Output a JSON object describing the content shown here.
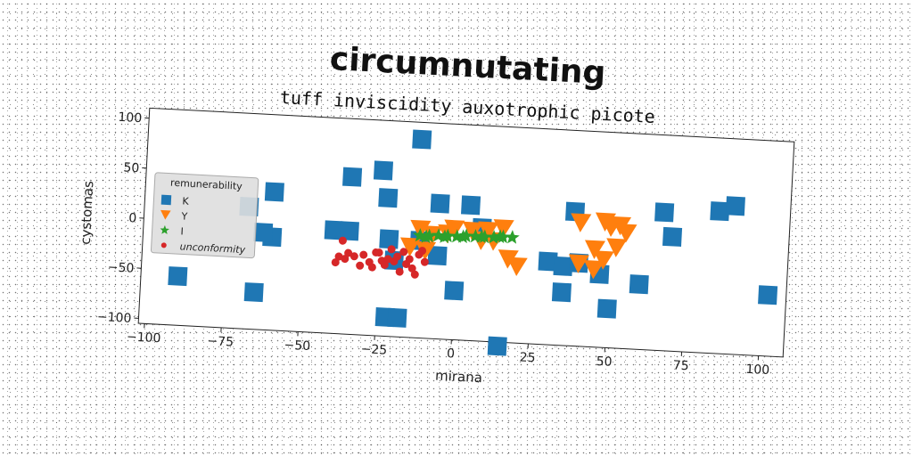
{
  "chart_data": {
    "type": "scatter",
    "title": "circumnutating",
    "subtitle": "tuff inviscidity auxotrophic picote",
    "xlabel": "mirana",
    "ylabel": "cystomas",
    "xlim": [
      -102,
      108
    ],
    "ylim": [
      -105,
      110
    ],
    "xticks": [
      -100,
      -75,
      -50,
      -25,
      0,
      25,
      50,
      75,
      100
    ],
    "yticks": [
      -100,
      -50,
      0,
      50,
      100
    ],
    "xtick_labels": [
      "−100",
      "−75",
      "−50",
      "−25",
      "0",
      "25",
      "50",
      "75",
      "100"
    ],
    "ytick_labels": [
      "−100",
      "−50",
      "0",
      "50",
      "100"
    ],
    "grid": false,
    "legend": {
      "title": "remunerability",
      "placement": "center-left"
    },
    "series": [
      {
        "name": "K",
        "marker": "square",
        "color": "#1f77b4",
        "points": [
          [
            -13,
            93
          ],
          [
            -25,
            60
          ],
          [
            -35,
            52
          ],
          [
            -60,
            33
          ],
          [
            -23,
            33
          ],
          [
            -6,
            30
          ],
          [
            4,
            30
          ],
          [
            -68,
            17
          ],
          [
            38,
            29
          ],
          [
            67,
            33
          ],
          [
            85,
            37
          ],
          [
            90,
            43
          ],
          [
            70,
            9
          ],
          [
            -60,
            -12
          ],
          [
            -40,
            -2
          ],
          [
            -35,
            -2
          ],
          [
            -22,
            -8
          ],
          [
            -12,
            -8
          ],
          [
            -6,
            -22
          ],
          [
            -20,
            -29
          ],
          [
            0,
            -56
          ],
          [
            -90,
            -56
          ],
          [
            -65,
            -68
          ],
          [
            -22,
            -86
          ],
          [
            -18,
            -86
          ],
          [
            30,
            -22
          ],
          [
            35,
            -26
          ],
          [
            40,
            -22
          ],
          [
            47,
            -32
          ],
          [
            60,
            -40
          ],
          [
            50,
            -66
          ],
          [
            35,
            -52
          ],
          [
            102,
            -44
          ],
          [
            15,
            -109
          ],
          [
            8,
            8
          ],
          [
            -63,
            -8
          ]
        ]
      },
      {
        "name": "Y",
        "marker": "triangle-down",
        "color": "#ff7f0e",
        "points": [
          [
            -12,
            3
          ],
          [
            -8,
            -2
          ],
          [
            -3,
            0
          ],
          [
            -1,
            5
          ],
          [
            5,
            4
          ],
          [
            8,
            -5
          ],
          [
            10,
            5
          ],
          [
            12,
            -5
          ],
          [
            15,
            8
          ],
          [
            17,
            -22
          ],
          [
            20,
            -29
          ],
          [
            40,
            18
          ],
          [
            48,
            20
          ],
          [
            50,
            15
          ],
          [
            53,
            17
          ],
          [
            55,
            10
          ],
          [
            52,
            -5
          ],
          [
            45,
            -8
          ],
          [
            48,
            -18
          ],
          [
            45,
            -28
          ],
          [
            40,
            -23
          ],
          [
            -15,
            -15
          ],
          [
            -10,
            -18
          ]
        ]
      },
      {
        "name": "I",
        "marker": "star",
        "color": "#2ca02c",
        "points": [
          [
            -12,
            -3
          ],
          [
            -9,
            -3
          ],
          [
            -6,
            -2
          ],
          [
            -3,
            -2
          ],
          [
            0,
            -2
          ],
          [
            3,
            -1
          ],
          [
            6,
            -1
          ],
          [
            9,
            -1
          ],
          [
            12,
            -1
          ],
          [
            15,
            0
          ],
          [
            18,
            0
          ],
          [
            -10,
            -4
          ],
          [
            -4,
            -3
          ],
          [
            2,
            -2
          ],
          [
            8,
            -1
          ],
          [
            14,
            0
          ]
        ]
      },
      {
        "name": "unconformity",
        "marker": "circle",
        "color": "#d62728",
        "points": [
          [
            -37,
            -12
          ],
          [
            -38,
            -28
          ],
          [
            -36,
            -30
          ],
          [
            -33,
            -27
          ],
          [
            -30,
            -25
          ],
          [
            -28,
            -32
          ],
          [
            -26,
            -22
          ],
          [
            -24,
            -30
          ],
          [
            -22,
            -28
          ],
          [
            -20,
            -30
          ],
          [
            -19,
            -25
          ],
          [
            -17,
            -20
          ],
          [
            -16,
            -32
          ],
          [
            -14,
            -36
          ],
          [
            -15,
            -27
          ],
          [
            -12,
            -22
          ],
          [
            -11,
            -18
          ],
          [
            -18,
            -40
          ],
          [
            -13,
            -42
          ],
          [
            -25,
            -22
          ],
          [
            -31,
            -36
          ],
          [
            -39,
            -34
          ],
          [
            -35,
            -24
          ],
          [
            -21,
            -18
          ],
          [
            -10,
            -29
          ],
          [
            -27,
            -37
          ],
          [
            -23,
            -34
          ]
        ]
      }
    ]
  }
}
